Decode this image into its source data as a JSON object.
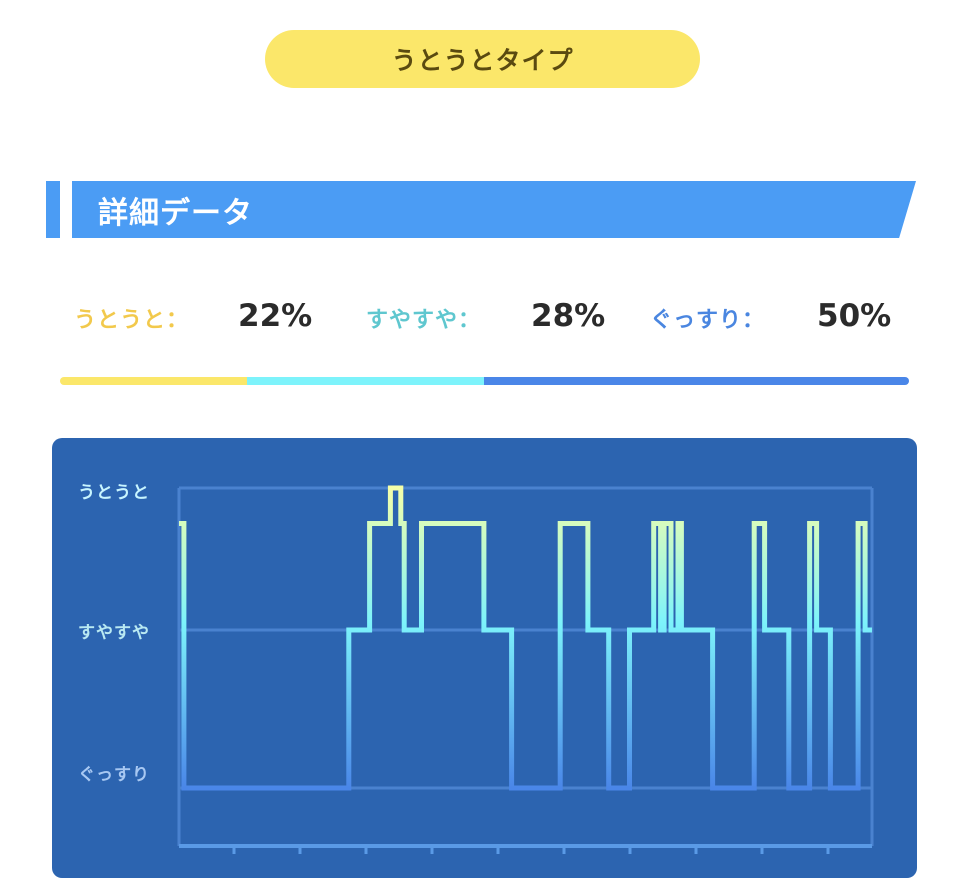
{
  "header": {
    "type_label": "うとうとタイプ"
  },
  "section": {
    "title": "詳細データ"
  },
  "stats": [
    {
      "label": "うとうと：",
      "value": "22%",
      "ratio": 0.22,
      "color": "#f2c94c"
    },
    {
      "label": "すやすや：",
      "value": "28%",
      "ratio": 0.28,
      "color": "#5fc7cf"
    },
    {
      "label": "ぐっすり：",
      "value": "50%",
      "ratio": 0.5,
      "color": "#4a86e0"
    }
  ],
  "bar_colors": [
    "#fbe76a",
    "#7df3fb",
    "#4a86e8"
  ],
  "chart_data": {
    "type": "line",
    "title": "",
    "xlabel": "",
    "ylabel": "",
    "y_levels": [
      "ぐっすり",
      "すやすや",
      "うとうと"
    ],
    "y_level_colors": [
      "#a8c8f2",
      "#b9e9f2",
      "#c8f5ff"
    ],
    "x_range": [
      0,
      100
    ],
    "grid": true,
    "series": [
      {
        "steps": [
          [
            0,
            1.75
          ],
          [
            0.7,
            1.75
          ],
          [
            0.7,
            0
          ],
          [
            24.5,
            0
          ],
          [
            24.5,
            1
          ],
          [
            27.5,
            1
          ],
          [
            27.5,
            1.75
          ],
          [
            30.5,
            1.75
          ],
          [
            30.5,
            2
          ],
          [
            32,
            2
          ],
          [
            32,
            1.75
          ],
          [
            32.5,
            1.75
          ],
          [
            32.5,
            1
          ],
          [
            35,
            1
          ],
          [
            35,
            1.75
          ],
          [
            44,
            1.75
          ],
          [
            44,
            1
          ],
          [
            48,
            1
          ],
          [
            48,
            0
          ],
          [
            55,
            0
          ],
          [
            55,
            1.75
          ],
          [
            59,
            1.75
          ],
          [
            59,
            1
          ],
          [
            62,
            1
          ],
          [
            62,
            0
          ],
          [
            65,
            0
          ],
          [
            65,
            1
          ],
          [
            68.5,
            1
          ],
          [
            68.5,
            1.75
          ],
          [
            69.5,
            1.75
          ],
          [
            69.5,
            1
          ],
          [
            70,
            1
          ],
          [
            70,
            1.75
          ],
          [
            71,
            1.75
          ],
          [
            71,
            1
          ],
          [
            72,
            1
          ],
          [
            72,
            1.75
          ],
          [
            72.5,
            1.75
          ],
          [
            72.5,
            1
          ],
          [
            77,
            1
          ],
          [
            77,
            0
          ],
          [
            83,
            0
          ],
          [
            83,
            1.75
          ],
          [
            84.5,
            1.75
          ],
          [
            84.5,
            1
          ],
          [
            88,
            1
          ],
          [
            88,
            0
          ],
          [
            91,
            0
          ],
          [
            91,
            1.75
          ],
          [
            92,
            1.75
          ],
          [
            92,
            1
          ],
          [
            94,
            1
          ],
          [
            94,
            0
          ],
          [
            98,
            0
          ],
          [
            98,
            1.75
          ],
          [
            99,
            1.75
          ],
          [
            99,
            1
          ],
          [
            100,
            1
          ]
        ]
      }
    ]
  }
}
